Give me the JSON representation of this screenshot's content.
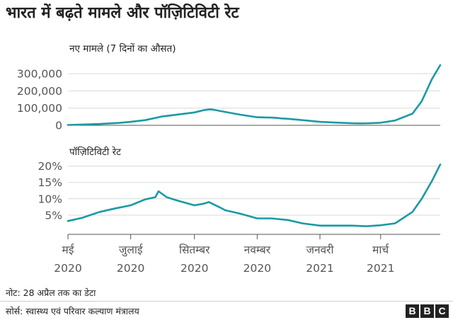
{
  "title": "भारत में बढ़ते मामले और पॉज़िटिविटी रेट",
  "note": "नोट: 28 अप्रैल तक का डेटा",
  "source": "सोर्स: स्वास्थ्य एवं परिवार कल्याण मंत्रालय",
  "logo": [
    "B",
    "B",
    "C"
  ],
  "colors": {
    "line": "#1a9aa4",
    "grid": "#d9d9d9",
    "axis": "#555555",
    "text": "#222222"
  },
  "x_axis": {
    "ticks": [
      {
        "month": "2020-05",
        "line1": "मई",
        "line2": "2020"
      },
      {
        "month": "2020-07",
        "line1": "जुलाई",
        "line2": "2020"
      },
      {
        "month": "2020-09",
        "line1": "सितम्बर",
        "line2": "2020"
      },
      {
        "month": "2020-11",
        "line1": "नवम्बर",
        "line2": "2020"
      },
      {
        "month": "2021-01",
        "line1": "जनवरी",
        "line2": "2021"
      },
      {
        "month": "2021-03",
        "line1": "मार्च",
        "line2": "2021"
      }
    ]
  },
  "chart_data": [
    {
      "type": "line",
      "title": "नए मामले (7 दिनों का औसत)",
      "ylim": [
        0,
        350000
      ],
      "yticks": [
        0,
        100000,
        200000,
        300000
      ],
      "ytick_labels": [
        "0",
        "100,000",
        "200,000",
        "300,000"
      ],
      "grid": true,
      "x": [
        "2020-05-01",
        "2020-06-01",
        "2020-06-20",
        "2020-07-01",
        "2020-07-15",
        "2020-08-01",
        "2020-08-15",
        "2020-09-01",
        "2020-09-10",
        "2020-09-16",
        "2020-09-20",
        "2020-10-01",
        "2020-10-15",
        "2020-11-01",
        "2020-11-15",
        "2020-11-20",
        "2020-11-25",
        "2020-12-01",
        "2020-12-15",
        "2021-01-01",
        "2021-01-15",
        "2021-02-01",
        "2021-02-10",
        "2021-02-15",
        "2021-03-01",
        "2021-03-15",
        "2021-04-01",
        "2021-04-10",
        "2021-04-20",
        "2021-04-28"
      ],
      "values": [
        2000,
        8000,
        14000,
        20000,
        30000,
        52000,
        62000,
        75000,
        88000,
        93000,
        90000,
        78000,
        62000,
        47000,
        45000,
        43000,
        40000,
        38000,
        30000,
        20000,
        16000,
        12000,
        11000,
        11500,
        15000,
        28000,
        68000,
        140000,
        270000,
        350000
      ]
    },
    {
      "type": "line",
      "title": "पॉज़िटिविटी रेट",
      "ylim": [
        0,
        21
      ],
      "yticks": [
        5,
        10,
        15,
        20
      ],
      "ytick_labels": [
        "5%",
        "10%",
        "15%",
        "20%"
      ],
      "grid": true,
      "x": [
        "2020-05-01",
        "2020-05-15",
        "2020-06-01",
        "2020-06-15",
        "2020-07-01",
        "2020-07-15",
        "2020-07-25",
        "2020-07-28",
        "2020-08-05",
        "2020-08-15",
        "2020-09-01",
        "2020-09-10",
        "2020-09-15",
        "2020-09-25",
        "2020-10-01",
        "2020-10-15",
        "2020-11-01",
        "2020-11-15",
        "2020-12-01",
        "2020-12-15",
        "2021-01-01",
        "2021-01-15",
        "2021-02-01",
        "2021-02-15",
        "2021-03-01",
        "2021-03-15",
        "2021-04-01",
        "2021-04-10",
        "2021-04-20",
        "2021-04-28"
      ],
      "values": [
        3.2,
        4.2,
        6.0,
        7.0,
        8.0,
        9.8,
        10.5,
        12.3,
        10.5,
        9.5,
        8.0,
        8.5,
        9.0,
        7.5,
        6.5,
        5.5,
        4.0,
        4.0,
        3.5,
        2.5,
        1.8,
        1.8,
        1.8,
        1.6,
        1.9,
        2.5,
        6.0,
        10.0,
        15.5,
        20.5
      ]
    }
  ]
}
